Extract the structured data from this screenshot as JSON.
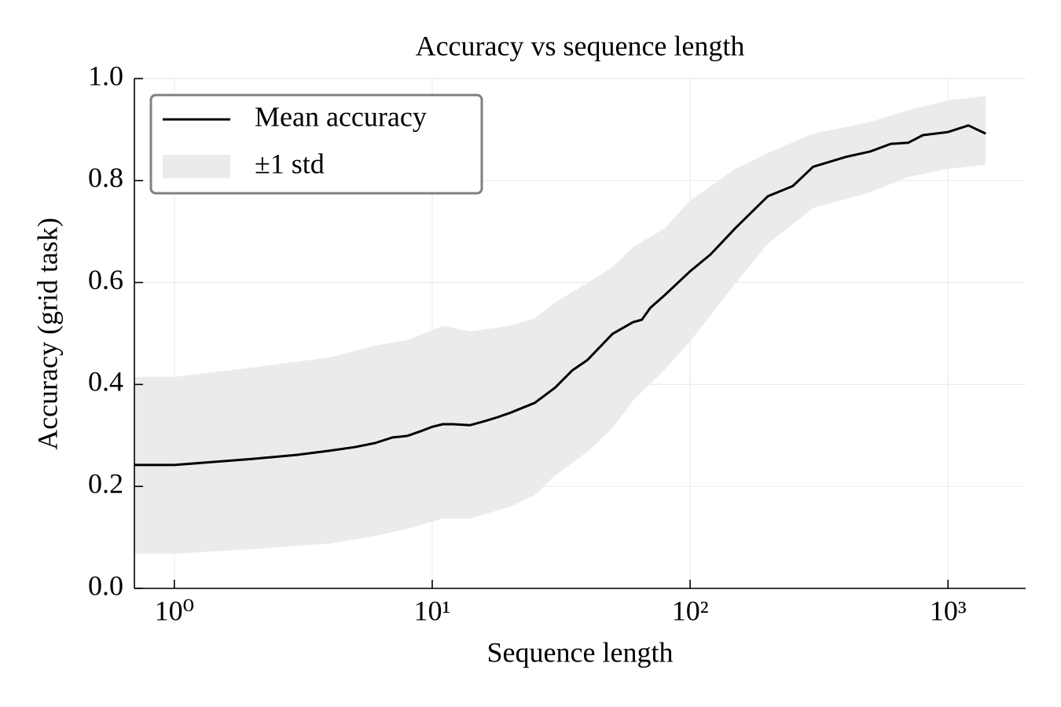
{
  "chart_data": {
    "type": "line",
    "title": "Accuracy vs sequence length",
    "xlabel": "Sequence length",
    "ylabel": "Accuracy (grid task)",
    "xscale": "log",
    "xlim": [
      0.7,
      2000
    ],
    "ylim": [
      0,
      1
    ],
    "xticks": [
      {
        "value": 1,
        "label": "10⁰"
      },
      {
        "value": 10,
        "label": "10¹"
      },
      {
        "value": 100,
        "label": "10²"
      },
      {
        "value": 1000,
        "label": "10³"
      }
    ],
    "yticks": [
      {
        "value": 0,
        "label": "0.0"
      },
      0.2,
      0.4,
      0.6,
      0.8,
      {
        "value": 1,
        "label": "1.0"
      }
    ],
    "grid": true,
    "legend": "upper left",
    "series": [
      {
        "name": "Mean accuracy",
        "color": "#000000",
        "x": [
          0.7,
          1,
          2,
          3,
          4,
          5,
          6,
          7,
          8,
          9,
          10,
          11,
          12,
          14,
          16,
          18,
          20,
          25,
          30,
          35,
          40,
          50,
          60,
          65,
          70,
          80,
          100,
          120,
          150,
          200,
          250,
          300,
          400,
          500,
          600,
          700,
          800,
          1000,
          1200,
          1400
        ],
        "values": [
          0.242,
          0.242,
          0.254,
          0.262,
          0.27,
          0.277,
          0.285,
          0.296,
          0.299,
          0.308,
          0.317,
          0.322,
          0.322,
          0.32,
          0.328,
          0.336,
          0.344,
          0.364,
          0.394,
          0.428,
          0.448,
          0.499,
          0.522,
          0.527,
          0.55,
          0.576,
          0.622,
          0.655,
          0.707,
          0.769,
          0.789,
          0.827,
          0.846,
          0.857,
          0.872,
          0.874,
          0.889,
          0.895,
          0.908,
          0.892
        ]
      }
    ],
    "band": {
      "name": "±1 std",
      "color": "#ebebeb",
      "x": [
        0.7,
        1,
        2,
        4,
        6,
        8,
        10,
        11,
        14,
        20,
        25,
        30,
        40,
        50,
        60,
        80,
        100,
        150,
        200,
        300,
        500,
        700,
        1000,
        1400
      ],
      "upper": [
        0.415,
        0.415,
        0.433,
        0.453,
        0.476,
        0.487,
        0.507,
        0.515,
        0.504,
        0.515,
        0.53,
        0.561,
        0.599,
        0.63,
        0.669,
        0.707,
        0.761,
        0.823,
        0.854,
        0.892,
        0.915,
        0.938,
        0.957,
        0.966
      ],
      "lower": [
        0.068,
        0.068,
        0.077,
        0.088,
        0.103,
        0.117,
        0.131,
        0.137,
        0.137,
        0.16,
        0.183,
        0.222,
        0.268,
        0.314,
        0.368,
        0.43,
        0.484,
        0.599,
        0.676,
        0.746,
        0.777,
        0.807,
        0.823,
        0.831
      ]
    }
  }
}
